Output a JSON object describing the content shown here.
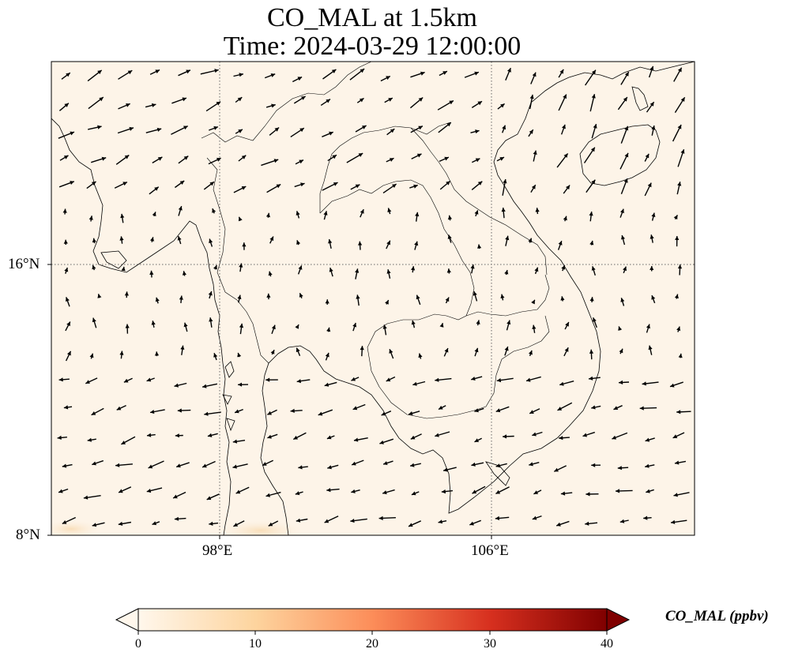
{
  "figure": {
    "title_line1": "CO_MAL at 1.5km",
    "title_line2": "Time: 2024-03-29 12:00:00",
    "lon_range": [
      93,
      112
    ],
    "lat_range": [
      8,
      22
    ],
    "lon_ticks": [
      {
        "value": 98,
        "label": "98°E"
      },
      {
        "value": 106,
        "label": "106°E"
      }
    ],
    "lat_ticks": [
      {
        "value": 16,
        "label": "16°N"
      },
      {
        "value": 8,
        "label": "8°N"
      }
    ],
    "gridlines": true,
    "field_background": "#fdf4e8",
    "field_min_visible_ppbv": 0,
    "field_max_visible_ppbv": 4,
    "wind_vectors_shown": true
  },
  "colorbar": {
    "title": "CO_MAL (ppbv)",
    "colormap": "OrRd",
    "min": 0,
    "max": 40,
    "extend": "both",
    "ticks": [
      {
        "value": 0,
        "label": "0"
      },
      {
        "value": 10,
        "label": "10"
      },
      {
        "value": 20,
        "label": "20"
      },
      {
        "value": 30,
        "label": "30"
      },
      {
        "value": 40,
        "label": "40"
      }
    ],
    "colors": [
      "#fff7ec",
      "#fdd49e",
      "#fc8d59",
      "#d7301f",
      "#7f0000"
    ]
  }
}
